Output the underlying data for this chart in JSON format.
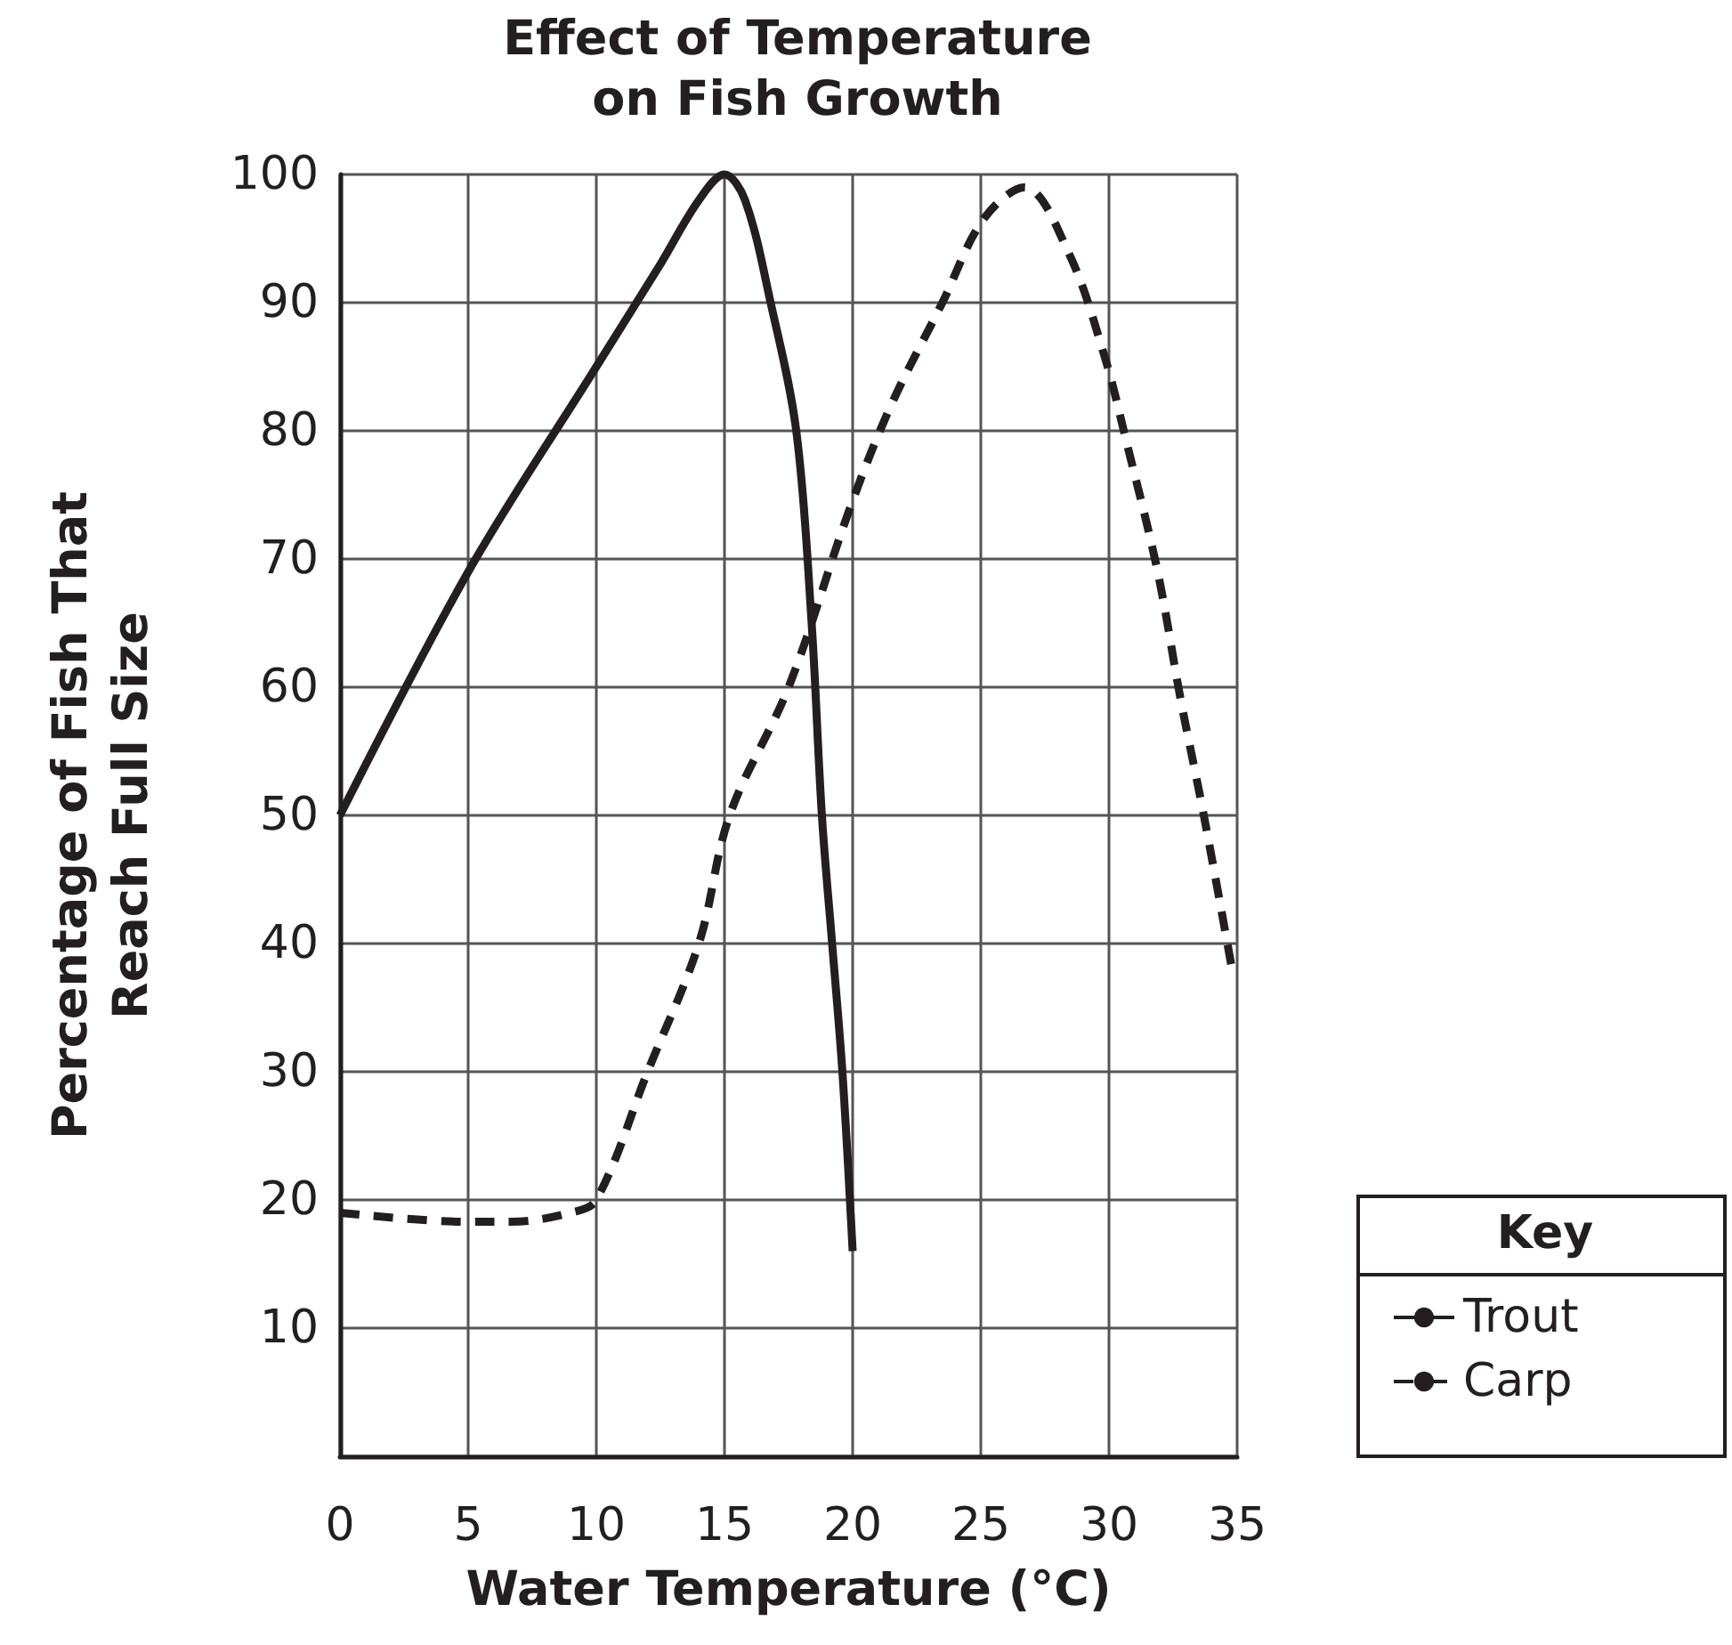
{
  "chart_data": {
    "type": "line",
    "title": "Effect of Temperature\non Fish Growth",
    "xlabel": "Water Temperature (°C)",
    "ylabel": "Percentage of Fish That\nReach Full Size",
    "legend_title": "Key",
    "legend": "bottom right",
    "grid": true,
    "marker": "none",
    "xlim": [
      0,
      35
    ],
    "ylim": [
      0,
      100
    ],
    "xticks": [
      {
        "value": 0,
        "label": "0"
      },
      5,
      10,
      15,
      20,
      25,
      30,
      35
    ],
    "yticks": [
      {
        "value": 0,
        "label": null
      },
      10,
      20,
      30,
      40,
      50,
      60,
      70,
      80,
      90,
      100
    ],
    "series": [
      {
        "name": "Trout",
        "color": "#231f20",
        "line_style": "solid",
        "x": [
          0,
          5,
          10,
          12.5,
          14,
          15,
          15.8,
          16.8,
          17.8,
          18.4,
          18.8,
          19.2,
          19.6,
          20
        ],
        "values": [
          50,
          69,
          85,
          93,
          98,
          100,
          98,
          90,
          80,
          65,
          50,
          40,
          30,
          16
        ]
      },
      {
        "name": "Carp",
        "color": "#231f20",
        "line_style": "dashed",
        "x": [
          0,
          5,
          6.7,
          9,
          10,
          12,
          14,
          15.2,
          17.5,
          19.9,
          21.5,
          23.5,
          25.1,
          26.7,
          28.4,
          29.8,
          30.7,
          31.9,
          32.8,
          33.7,
          34.8
        ],
        "values": [
          19,
          18.3,
          18.3,
          19,
          20,
          30,
          40,
          50,
          60,
          74,
          82,
          90,
          96.5,
          99,
          94,
          86,
          79,
          69,
          59,
          50,
          38
        ]
      }
    ]
  }
}
